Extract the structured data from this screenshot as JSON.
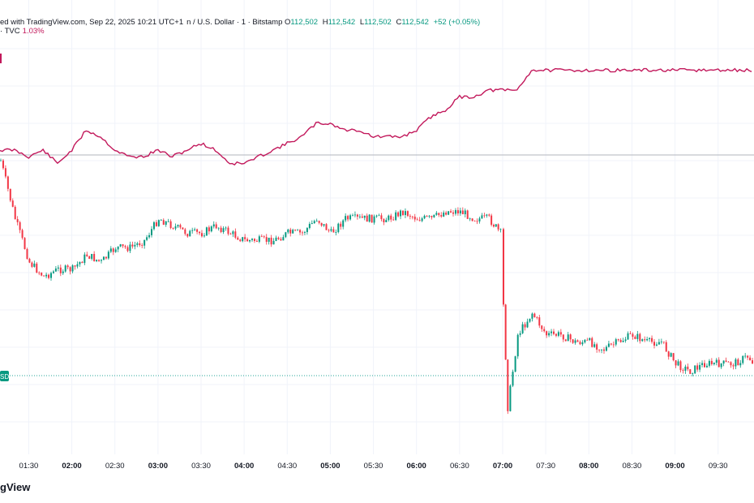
{
  "header": {
    "line1_prefix": "ed with TradingView.com, Sep 22, 2025 10:21 UTC+1",
    "symbol": "n / U.S. Dollar · 1 · Bitstamp",
    "ohlc": [
      {
        "k": "O",
        "v": "112,502"
      },
      {
        "k": "H",
        "v": "112,542"
      },
      {
        "k": "L",
        "v": "112,502"
      },
      {
        "k": "C",
        "v": "112,542"
      }
    ],
    "change": "+52 (+0.05%)",
    "compare_label": "· TVC",
    "compare_value": "1.03%"
  },
  "price_tag": "SD",
  "footer": {
    "logo_text": "gView"
  },
  "colors": {
    "up": "#089981",
    "down": "#f23645",
    "compare": "#c2185b",
    "grid": "#f0f3fa",
    "hline": "#b2b5be",
    "dotted": "#26a69a"
  },
  "chart_data": {
    "type": "line",
    "title": "",
    "x_ticks": [
      "01:30",
      "02:00",
      "02:30",
      "03:00",
      "03:30",
      "04:00",
      "04:30",
      "05:00",
      "05:30",
      "06:00",
      "06:30",
      "07:00",
      "07:30",
      "08:00",
      "08:30",
      "09:00",
      "09:30"
    ],
    "x_ticks_bold": [
      "02:00",
      "03:00",
      "04:00",
      "05:00",
      "06:00",
      "07:00",
      "08:00",
      "09:00"
    ],
    "x_range": [
      "01:10",
      "09:55"
    ],
    "series": [
      {
        "kind": "candlestick",
        "x": [
          "01:10",
          "01:20",
          "01:30",
          "01:40",
          "01:50",
          "02:00",
          "02:10",
          "02:20",
          "02:30",
          "02:40",
          "02:50",
          "03:00",
          "03:10",
          "03:20",
          "03:30",
          "03:40",
          "03:50",
          "04:00",
          "04:10",
          "04:20",
          "04:30",
          "04:40",
          "04:50",
          "05:00",
          "05:10",
          "05:20",
          "05:30",
          "05:40",
          "05:50",
          "06:00",
          "06:10",
          "06:20",
          "06:30",
          "06:40",
          "06:50",
          "06:58",
          "07:00",
          "07:03",
          "07:10",
          "07:20",
          "07:30",
          "07:40",
          "07:50",
          "08:00",
          "08:10",
          "08:20",
          "08:30",
          "08:40",
          "08:50",
          "09:00",
          "09:10",
          "09:20",
          "09:30",
          "09:40",
          "09:50",
          "09:55"
        ],
        "values": [
          0.62,
          0.7,
          0.76,
          0.78,
          0.77,
          0.77,
          0.75,
          0.76,
          0.74,
          0.74,
          0.73,
          0.7,
          0.71,
          0.72,
          0.72,
          0.71,
          0.72,
          0.73,
          0.73,
          0.73,
          0.72,
          0.72,
          0.7,
          0.72,
          0.7,
          0.7,
          0.7,
          0.7,
          0.69,
          0.7,
          0.7,
          0.69,
          0.69,
          0.7,
          0.7,
          0.72,
          0.82,
          0.96,
          0.86,
          0.83,
          0.86,
          0.86,
          0.87,
          0.87,
          0.88,
          0.87,
          0.86,
          0.87,
          0.87,
          0.9,
          0.91,
          0.9,
          0.9,
          0.9,
          0.89,
          0.9
        ]
      },
      {
        "kind": "line",
        "name": "",
        "x": [
          "01:10",
          "01:20",
          "01:30",
          "01:40",
          "01:50",
          "02:00",
          "02:10",
          "02:20",
          "02:30",
          "02:40",
          "02:50",
          "03:00",
          "03:10",
          "03:20",
          "03:30",
          "03:40",
          "03:50",
          "04:00",
          "04:10",
          "04:20",
          "04:30",
          "04:40",
          "04:50",
          "05:00",
          "05:10",
          "05:20",
          "05:30",
          "05:40",
          "05:50",
          "06:00",
          "06:10",
          "06:20",
          "06:30",
          "06:40",
          "06:50",
          "07:00",
          "07:10",
          "07:20",
          "07:30",
          "07:40",
          "07:50",
          "08:00",
          "08:10",
          "08:20",
          "08:30",
          "08:40",
          "08:50",
          "09:00",
          "09:10",
          "09:20",
          "09:30",
          "09:40",
          "09:50",
          "09:55"
        ],
        "values": [
          0.0,
          0.0,
          -0.01,
          0.0,
          -0.02,
          0.0,
          0.03,
          0.02,
          0.0,
          -0.01,
          -0.01,
          0.0,
          -0.01,
          0.0,
          0.01,
          0.0,
          -0.02,
          -0.02,
          -0.01,
          0.0,
          0.01,
          0.02,
          0.04,
          0.04,
          0.03,
          0.03,
          0.02,
          0.02,
          0.02,
          0.03,
          0.05,
          0.06,
          0.08,
          0.08,
          0.09,
          0.09,
          0.09,
          0.12,
          0.12,
          0.12,
          0.12,
          0.12,
          0.12,
          0.12,
          0.12,
          0.12,
          0.12,
          0.12,
          0.12,
          0.12,
          0.12,
          0.12,
          0.12,
          0.12
        ]
      }
    ]
  }
}
